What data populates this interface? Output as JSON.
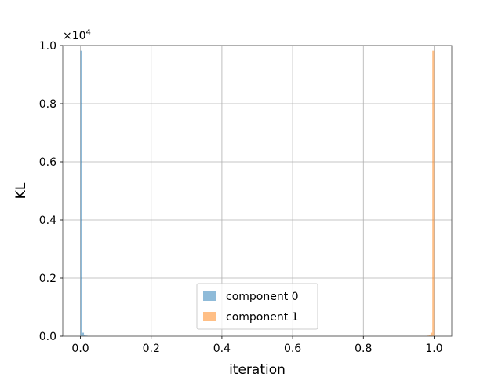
{
  "chart_data": {
    "type": "bar",
    "xlabel": "iteration",
    "ylabel": "KL",
    "y_offset_label": "×10",
    "y_offset_exponent": "4",
    "xlim": [
      -0.05,
      1.05
    ],
    "ylim": [
      0,
      1.0
    ],
    "grid": true,
    "legend_position": "lower-center",
    "x_ticks": [
      {
        "value": 0.0,
        "label": "0.0"
      },
      {
        "value": 0.2,
        "label": "0.2"
      },
      {
        "value": 0.4,
        "label": "0.4"
      },
      {
        "value": 0.6,
        "label": "0.6"
      },
      {
        "value": 0.8,
        "label": "0.8"
      },
      {
        "value": 1.0,
        "label": "1.0"
      }
    ],
    "y_ticks": [
      {
        "value": 0.0,
        "label": "0.0"
      },
      {
        "value": 0.2,
        "label": "0.2"
      },
      {
        "value": 0.4,
        "label": "0.4"
      },
      {
        "value": 0.6,
        "label": "0.6"
      },
      {
        "value": 0.8,
        "label": "0.8"
      },
      {
        "value": 1.0,
        "label": "1.0"
      }
    ],
    "series": [
      {
        "name": "component 0",
        "color": "#1f77b4",
        "bins": [
          {
            "x0": 0.0,
            "x1": 0.005,
            "value": 0.982
          },
          {
            "x0": 0.005,
            "x1": 0.01,
            "value": 0.012
          },
          {
            "x0": 0.01,
            "x1": 0.015,
            "value": 0.005
          },
          {
            "x0": 0.015,
            "x1": 0.02,
            "value": 0.002
          }
        ]
      },
      {
        "name": "component 1",
        "color": "#ff7f0e",
        "bins": [
          {
            "x0": 0.98,
            "x1": 0.985,
            "value": 0.002
          },
          {
            "x0": 0.985,
            "x1": 0.99,
            "value": 0.005
          },
          {
            "x0": 0.99,
            "x1": 0.995,
            "value": 0.012
          },
          {
            "x0": 0.995,
            "x1": 1.0,
            "value": 0.982
          }
        ]
      }
    ]
  }
}
